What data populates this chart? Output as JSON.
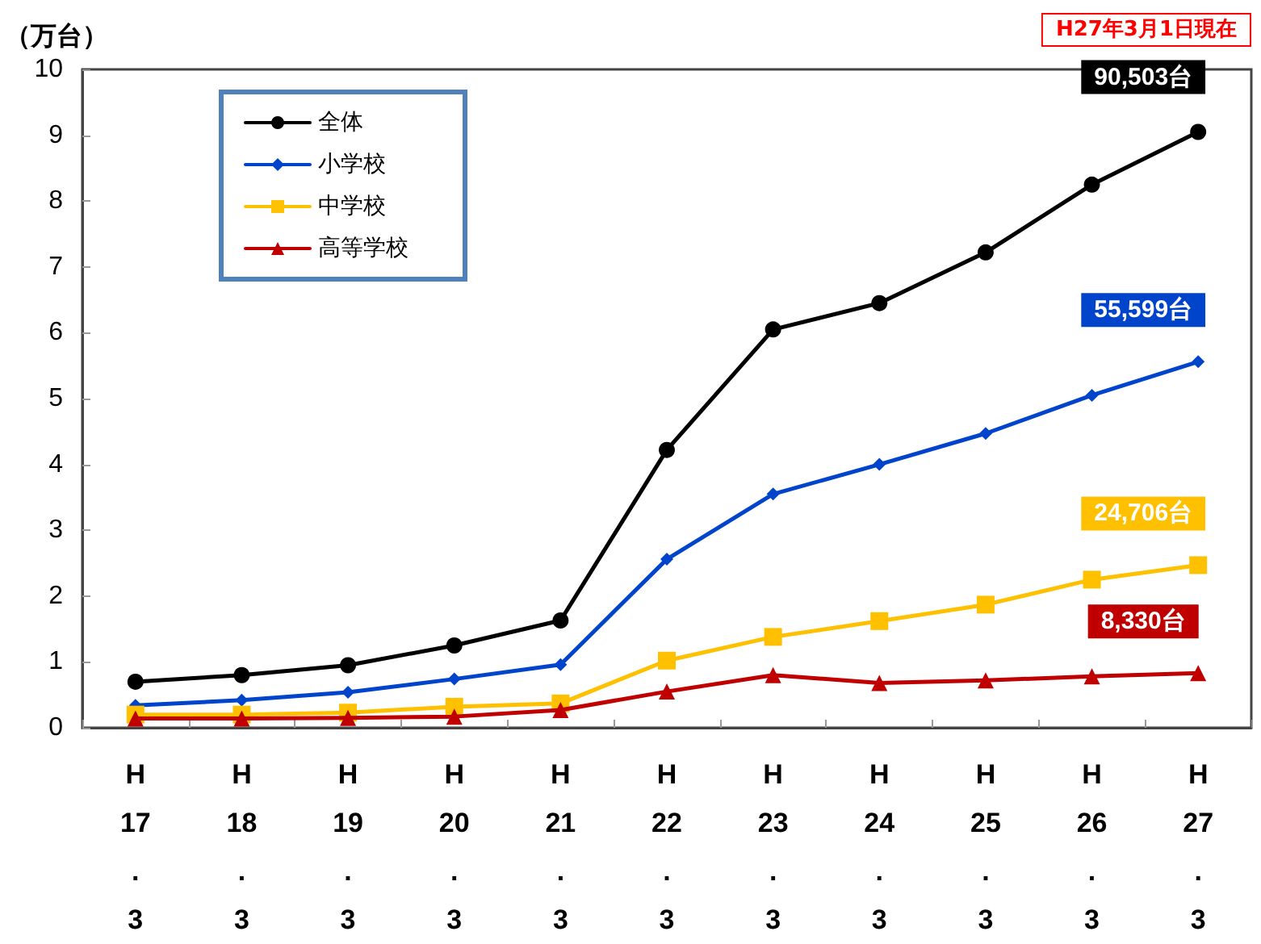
{
  "chart_data": {
    "type": "line",
    "ylabel": "（万台）",
    "annotations": [
      "H27年3月1日現在",
      {
        "text": "90,503台",
        "x": "H\n27\n.\n3",
        "y": 9.05
      },
      {
        "text": "55,599台",
        "x": "H\n27\n.\n3",
        "y": 5.56
      },
      {
        "text": "24,706台",
        "x": "H\n27\n.\n3",
        "y": 2.47
      },
      {
        "text": "8,330台",
        "x": "H\n27\n.\n3",
        "y": 0.83
      }
    ],
    "categories": [
      "H\n17\n.\n3",
      "H\n18\n.\n3",
      "H\n19\n.\n3",
      "H\n20\n.\n3",
      "H\n21\n.\n3",
      "H\n22\n.\n3",
      "H\n23\n.\n3",
      "H\n24\n.\n3",
      "H\n25\n.\n3",
      "H\n26\n.\n3",
      "H\n27\n.\n3"
    ],
    "series": [
      {
        "name": "全体",
        "color": "#000000",
        "marker": "circle",
        "values": [
          0.7,
          0.8,
          0.95,
          1.25,
          1.63,
          4.22,
          6.05,
          6.45,
          7.22,
          8.25,
          9.05
        ]
      },
      {
        "name": "小学校",
        "color": "#0044cc",
        "marker": "diamond",
        "values": [
          0.34,
          0.42,
          0.54,
          0.74,
          0.96,
          2.56,
          3.55,
          4.0,
          4.47,
          5.05,
          5.56
        ]
      },
      {
        "name": "中学校",
        "color": "#ffc000",
        "marker": "square",
        "values": [
          0.2,
          0.2,
          0.23,
          0.32,
          0.37,
          1.02,
          1.38,
          1.62,
          1.87,
          2.25,
          2.47
        ]
      },
      {
        "name": "高等学校",
        "color": "#c00000",
        "marker": "triangle",
        "values": [
          0.14,
          0.14,
          0.15,
          0.17,
          0.27,
          0.55,
          0.8,
          0.68,
          0.72,
          0.78,
          0.83
        ]
      }
    ],
    "ylim": [
      0,
      10
    ],
    "yticks": [
      0,
      1,
      2,
      3,
      4,
      5,
      6,
      7,
      8,
      9,
      10
    ],
    "grid": false,
    "legend": "top left"
  }
}
